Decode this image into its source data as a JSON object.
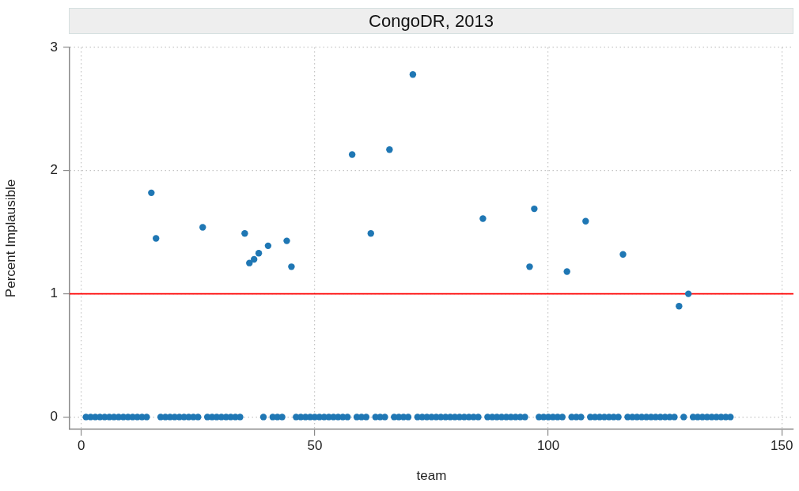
{
  "chart_data": {
    "type": "scatter",
    "title": "CongoDR, 2013",
    "xlabel": "team",
    "ylabel": "Percent Implausible",
    "x": [
      1,
      2,
      3,
      4,
      5,
      6,
      7,
      8,
      9,
      10,
      11,
      12,
      13,
      14,
      15,
      16,
      17,
      18,
      19,
      20,
      21,
      22,
      23,
      24,
      25,
      26,
      27,
      28,
      29,
      30,
      31,
      32,
      33,
      34,
      35,
      36,
      37,
      38,
      39,
      40,
      41,
      42,
      43,
      44,
      45,
      46,
      47,
      48,
      49,
      50,
      51,
      52,
      53,
      54,
      55,
      56,
      57,
      58,
      59,
      60,
      61,
      62,
      63,
      64,
      65,
      66,
      67,
      68,
      69,
      70,
      71,
      72,
      73,
      74,
      75,
      76,
      77,
      78,
      79,
      80,
      81,
      82,
      83,
      84,
      85,
      86,
      87,
      88,
      89,
      90,
      91,
      92,
      93,
      94,
      95,
      96,
      97,
      98,
      99,
      100,
      101,
      102,
      103,
      104,
      105,
      106,
      107,
      108,
      109,
      110,
      111,
      112,
      113,
      114,
      115,
      116,
      117,
      118,
      119,
      120,
      121,
      122,
      123,
      124,
      125,
      126,
      127,
      128,
      129,
      130,
      131,
      132,
      133,
      134,
      135,
      136,
      137,
      138,
      139
    ],
    "values": [
      0,
      0,
      0,
      0,
      0,
      0,
      0,
      0,
      0,
      0,
      0,
      0,
      0,
      0,
      1.82,
      1.45,
      0,
      0,
      0,
      0,
      0,
      0,
      0,
      0,
      0,
      1.54,
      0,
      0,
      0,
      0,
      0,
      0,
      0,
      0,
      1.49,
      1.25,
      1.28,
      1.33,
      0,
      1.39,
      0,
      0,
      0,
      1.43,
      1.22,
      0,
      0,
      0,
      0,
      0,
      0,
      0,
      0,
      0,
      0,
      0,
      0,
      2.13,
      0,
      0,
      0,
      1.49,
      0,
      0,
      0,
      2.17,
      0,
      0,
      0,
      0,
      2.78,
      0,
      0,
      0,
      0,
      0,
      0,
      0,
      0,
      0,
      0,
      0,
      0,
      0,
      0,
      1.61,
      0,
      0,
      0,
      0,
      0,
      0,
      0,
      0,
      0,
      1.22,
      1.69,
      0,
      0,
      0,
      0,
      0,
      0,
      1.18,
      0,
      0,
      0,
      1.59,
      0,
      0,
      0,
      0,
      0,
      0,
      0,
      1.32,
      0,
      0,
      0,
      0,
      0,
      0,
      0,
      0,
      0,
      0,
      0,
      0.9,
      0,
      1.0,
      0,
      0,
      0,
      0,
      0,
      0,
      0,
      0,
      0
    ],
    "color": "#1f77b4",
    "marker": "circle",
    "xlim": [
      -2.5,
      152.5
    ],
    "xticks": [
      0,
      50,
      100,
      150
    ],
    "ylim": [
      -0.1,
      3
    ],
    "yticks": [
      0,
      1,
      2,
      3
    ],
    "grid": true,
    "ref_lines": [
      {
        "axis": "y",
        "value": 1,
        "color": "#ff0000"
      }
    ]
  }
}
